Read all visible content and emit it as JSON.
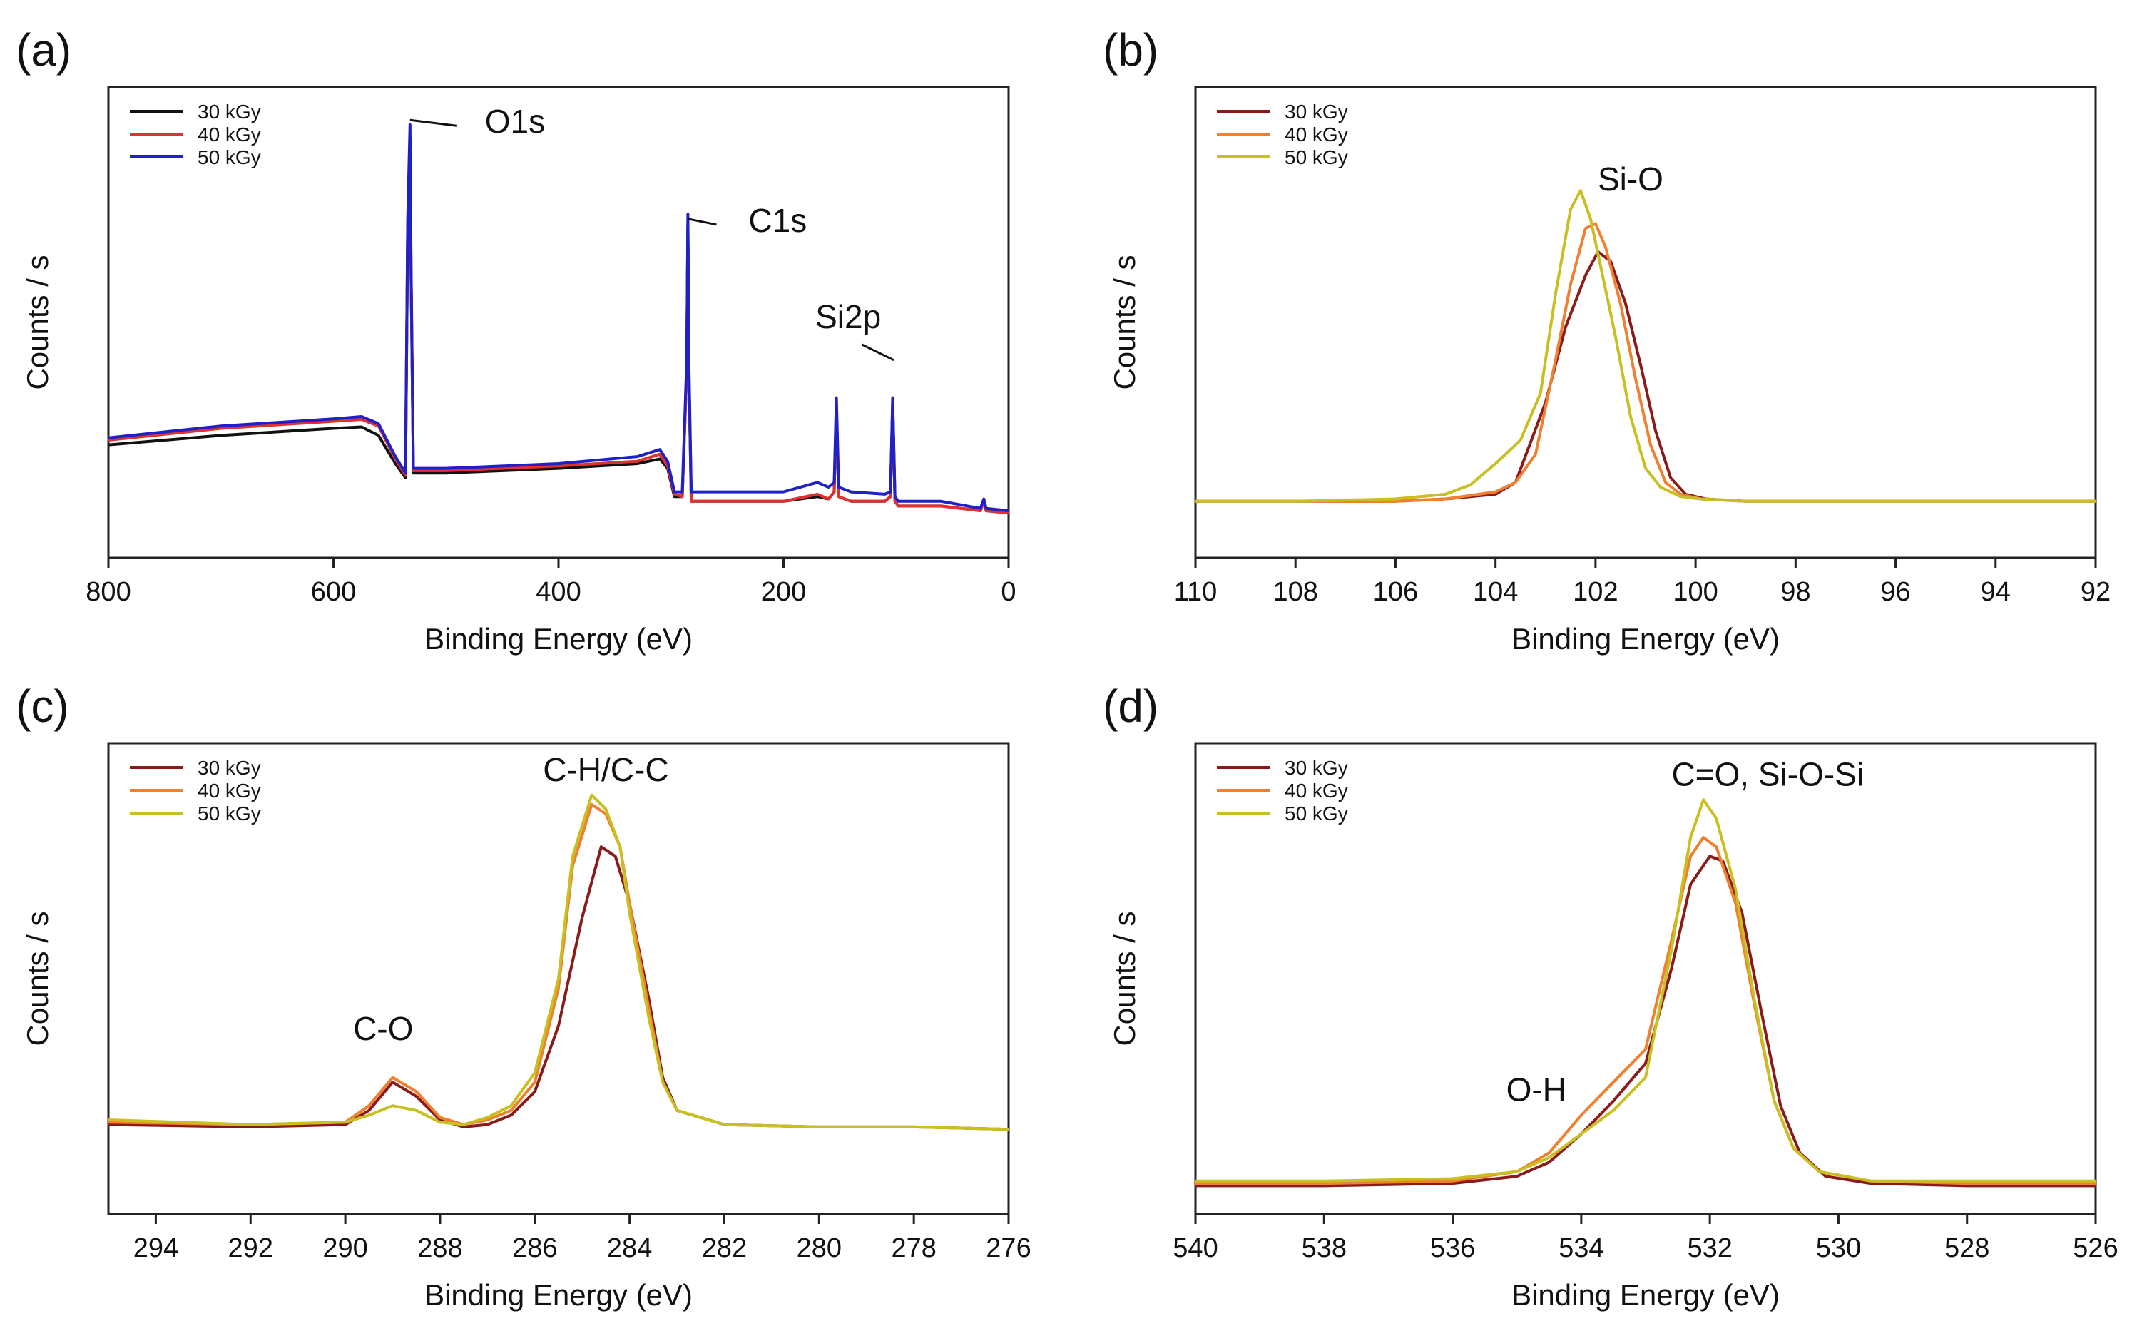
{
  "chart_data": [
    {
      "panel": "(a)",
      "type": "line",
      "xlabel": "Binding Energy (eV)",
      "ylabel": "Counts / s",
      "xlim": [
        800,
        0
      ],
      "ylim": [
        0,
        100
      ],
      "xticks": [
        "800",
        "600",
        "400",
        "200",
        "0"
      ],
      "legend_position": "top-left",
      "annotations": [
        {
          "text": "O1s",
          "x": 532,
          "y": 93
        },
        {
          "text": "C1s",
          "x": 285,
          "y": 72
        },
        {
          "text": "Si2p",
          "x": 102,
          "y": 42
        }
      ],
      "series": [
        {
          "name": "30 kGy",
          "color": "#111111",
          "x": [
            800,
            700,
            600,
            575,
            560,
            545,
            536,
            534,
            532,
            531,
            529,
            500,
            400,
            330,
            310,
            303,
            297,
            290,
            286,
            285,
            284,
            282,
            200,
            170,
            160,
            155,
            153,
            151,
            140,
            110,
            105,
            103,
            101,
            98,
            60,
            25,
            22,
            20,
            0
          ],
          "y": [
            24,
            26,
            27.5,
            27.8,
            26,
            20,
            17,
            70,
            89,
            60,
            18,
            18,
            19,
            20,
            21,
            19,
            13,
            13,
            40,
            71,
            38,
            12,
            12,
            13,
            12.5,
            14,
            32,
            13,
            12,
            12,
            13,
            33,
            12,
            11,
            11,
            10,
            12,
            10,
            9.5
          ]
        },
        {
          "name": "40 kGy",
          "color": "#e03030",
          "x": [
            800,
            700,
            600,
            575,
            560,
            545,
            536,
            534,
            532,
            531,
            529,
            500,
            400,
            330,
            310,
            303,
            297,
            290,
            286,
            285,
            284,
            282,
            200,
            170,
            160,
            155,
            153,
            151,
            140,
            110,
            105,
            103,
            101,
            98,
            60,
            25,
            22,
            20,
            0
          ],
          "y": [
            25,
            27.5,
            29,
            29.4,
            28,
            21,
            17.5,
            70,
            89,
            60,
            18.5,
            18.5,
            19.5,
            20.5,
            22,
            19.5,
            13.5,
            13,
            40,
            71,
            38,
            12,
            12,
            13.5,
            12.5,
            14,
            32,
            13,
            12,
            12,
            13,
            33,
            12,
            11,
            11,
            10,
            12,
            10,
            9.5
          ]
        },
        {
          "name": "50 kGy",
          "color": "#2020c8",
          "x": [
            800,
            700,
            600,
            575,
            560,
            545,
            536,
            534,
            532,
            531,
            529,
            500,
            400,
            330,
            310,
            303,
            297,
            290,
            286,
            285,
            284,
            282,
            200,
            170,
            160,
            155,
            153,
            151,
            140,
            110,
            105,
            103,
            101,
            98,
            60,
            25,
            22,
            20,
            0
          ],
          "y": [
            25.5,
            28,
            29.5,
            30,
            28.5,
            21.5,
            18,
            72,
            92,
            62,
            19,
            19,
            20,
            21.5,
            23,
            20.5,
            14,
            14,
            42,
            73,
            40,
            14,
            14,
            16,
            15,
            16,
            34,
            15,
            14,
            13.5,
            14,
            34,
            13,
            12,
            12,
            10.5,
            12.5,
            10.5,
            10
          ]
        }
      ]
    },
    {
      "panel": "(b)",
      "type": "line",
      "xlabel": "Binding Energy (eV)",
      "ylabel": "Counts / s",
      "xlim": [
        110,
        92
      ],
      "ylim": [
        0,
        100
      ],
      "xticks": [
        "110",
        "108",
        "106",
        "104",
        "102",
        "100",
        "98",
        "96",
        "94",
        "92"
      ],
      "legend_position": "top-left",
      "annotations": [
        {
          "text": "Si-O",
          "x": 101.3,
          "y": 78
        }
      ],
      "series": [
        {
          "name": "30 kGy",
          "color": "#8b1a1a",
          "x": [
            110,
            108,
            106,
            105,
            104,
            103.6,
            103,
            102.6,
            102.2,
            101.95,
            101.7,
            101.4,
            101.1,
            100.8,
            100.5,
            100.2,
            99.8,
            99,
            96,
            94,
            92
          ],
          "y": [
            12,
            12,
            12,
            12.5,
            13.5,
            16,
            33,
            49,
            60,
            65,
            63,
            54,
            41,
            27,
            17,
            13.5,
            12.5,
            12,
            12,
            12,
            12
          ]
        },
        {
          "name": "40 kGy",
          "color": "#f08030",
          "x": [
            110,
            108,
            106,
            105,
            104,
            103.6,
            103.2,
            102.8,
            102.5,
            102.2,
            102,
            101.8,
            101.5,
            101.2,
            100.9,
            100.6,
            100.3,
            99.9,
            99,
            96,
            94,
            92
          ],
          "y": [
            12,
            12,
            12,
            12.5,
            14,
            16,
            22,
            42,
            58,
            70,
            71,
            66,
            54,
            38,
            24,
            16,
            13.5,
            12.5,
            12,
            12,
            12,
            12
          ]
        },
        {
          "name": "50 kGy",
          "color": "#c8c020",
          "x": [
            110,
            108,
            106,
            105,
            104.5,
            104,
            103.5,
            103.1,
            102.8,
            102.5,
            102.3,
            102.1,
            101.9,
            101.6,
            101.3,
            101,
            100.7,
            100.3,
            99.9,
            99,
            96,
            94,
            92
          ],
          "y": [
            12,
            12,
            12.5,
            13.5,
            15.5,
            20,
            25,
            35,
            56,
            74,
            78,
            72,
            62,
            47,
            30,
            19,
            15,
            13,
            12.5,
            12,
            12,
            12,
            12
          ]
        }
      ]
    },
    {
      "panel": "(c)",
      "type": "line",
      "xlabel": "Binding Energy (eV)",
      "ylabel": "Counts / s",
      "xlim": [
        295,
        276
      ],
      "ylim": [
        0,
        100
      ],
      "xticks": [
        "294",
        "292",
        "290",
        "288",
        "286",
        "284",
        "282",
        "280",
        "278",
        "276"
      ],
      "legend_position": "top-left",
      "annotations": [
        {
          "text": "C-O",
          "x": 289.2,
          "y": 37
        },
        {
          "text": "C-H/C-C",
          "x": 284.5,
          "y": 92
        }
      ],
      "series": [
        {
          "name": "30 kGy",
          "color": "#8b1a1a",
          "x": [
            295,
            292,
            290,
            289.5,
            289,
            288.5,
            288,
            287.5,
            287,
            286.5,
            286,
            285.5,
            285,
            284.6,
            284.3,
            284,
            283.6,
            283.3,
            283,
            282,
            280,
            278,
            276
          ],
          "y": [
            19,
            18.5,
            19,
            22,
            28,
            25,
            20,
            18.5,
            19,
            21,
            26,
            40,
            63,
            78,
            76,
            66,
            46,
            29,
            22,
            19,
            18.5,
            18.5,
            18
          ]
        },
        {
          "name": "40 kGy",
          "color": "#f08030",
          "x": [
            295,
            292,
            290,
            289.5,
            289,
            288.5,
            288,
            287.5,
            287,
            286.5,
            286,
            285.5,
            285.2,
            284.8,
            284.5,
            284.2,
            284,
            283.6,
            283.3,
            283,
            282,
            280,
            278,
            276
          ],
          "y": [
            19.5,
            19,
            19.5,
            23,
            29,
            26,
            20.5,
            19,
            20,
            22,
            28,
            48,
            74,
            87,
            85,
            78,
            66,
            44,
            28,
            22,
            19,
            18.5,
            18.5,
            18
          ]
        },
        {
          "name": "50 kGy",
          "color": "#c8c020",
          "x": [
            295,
            292,
            290,
            289.5,
            289,
            288.5,
            288,
            287.5,
            287,
            286.5,
            286,
            285.5,
            285.2,
            284.8,
            284.5,
            284.2,
            284,
            283.6,
            283.3,
            283,
            282,
            280,
            278,
            276
          ],
          "y": [
            20,
            19,
            19.5,
            21,
            23,
            22,
            19.5,
            19,
            20.5,
            23,
            30,
            50,
            76,
            89,
            86,
            78,
            64,
            42,
            28,
            22,
            19,
            18.5,
            18.5,
            18
          ]
        }
      ]
    },
    {
      "panel": "(d)",
      "type": "line",
      "xlabel": "Binding Energy (eV)",
      "ylabel": "Counts / s",
      "xlim": [
        540,
        526
      ],
      "ylim": [
        0,
        100
      ],
      "xticks": [
        "540",
        "538",
        "536",
        "534",
        "532",
        "530",
        "528",
        "526"
      ],
      "legend_position": "top-left",
      "annotations": [
        {
          "text": "O-H",
          "x": 534.7,
          "y": 24
        },
        {
          "text": "C=O, Si-O-Si",
          "x": 531.1,
          "y": 91
        }
      ],
      "series": [
        {
          "name": "30 kGy",
          "color": "#8b1a1a",
          "x": [
            540,
            538,
            536,
            535,
            534.5,
            534,
            533.5,
            533,
            532.6,
            532.3,
            532,
            531.8,
            531.5,
            531.2,
            530.9,
            530.6,
            530.2,
            529.5,
            528,
            526
          ],
          "y": [
            6,
            6,
            6.5,
            8,
            11,
            17,
            24,
            32,
            52,
            70,
            76,
            75,
            64,
            43,
            23,
            13,
            8,
            6.5,
            6,
            6
          ]
        },
        {
          "name": "40 kGy",
          "color": "#f08030",
          "x": [
            540,
            538,
            536,
            535,
            534.5,
            534,
            533.5,
            533,
            532.6,
            532.3,
            532.1,
            531.9,
            531.6,
            531.3,
            531,
            530.7,
            530.3,
            529.5,
            528,
            526
          ],
          "y": [
            6.5,
            6.5,
            7,
            9,
            13,
            21,
            28,
            35,
            58,
            76,
            80,
            78,
            66,
            44,
            24,
            14,
            9,
            7,
            6.5,
            6.5
          ]
        },
        {
          "name": "50 kGy",
          "color": "#c8c020",
          "x": [
            540,
            538,
            536,
            535,
            534.5,
            534,
            533.5,
            533,
            532.6,
            532.3,
            532.1,
            531.9,
            531.6,
            531.3,
            531,
            530.7,
            530.3,
            529.5,
            528,
            526
          ],
          "y": [
            7,
            7,
            7.5,
            9,
            12,
            17,
            22,
            29,
            56,
            80,
            88,
            84,
            69,
            45,
            24,
            14,
            9,
            7,
            7,
            7
          ]
        }
      ]
    }
  ]
}
